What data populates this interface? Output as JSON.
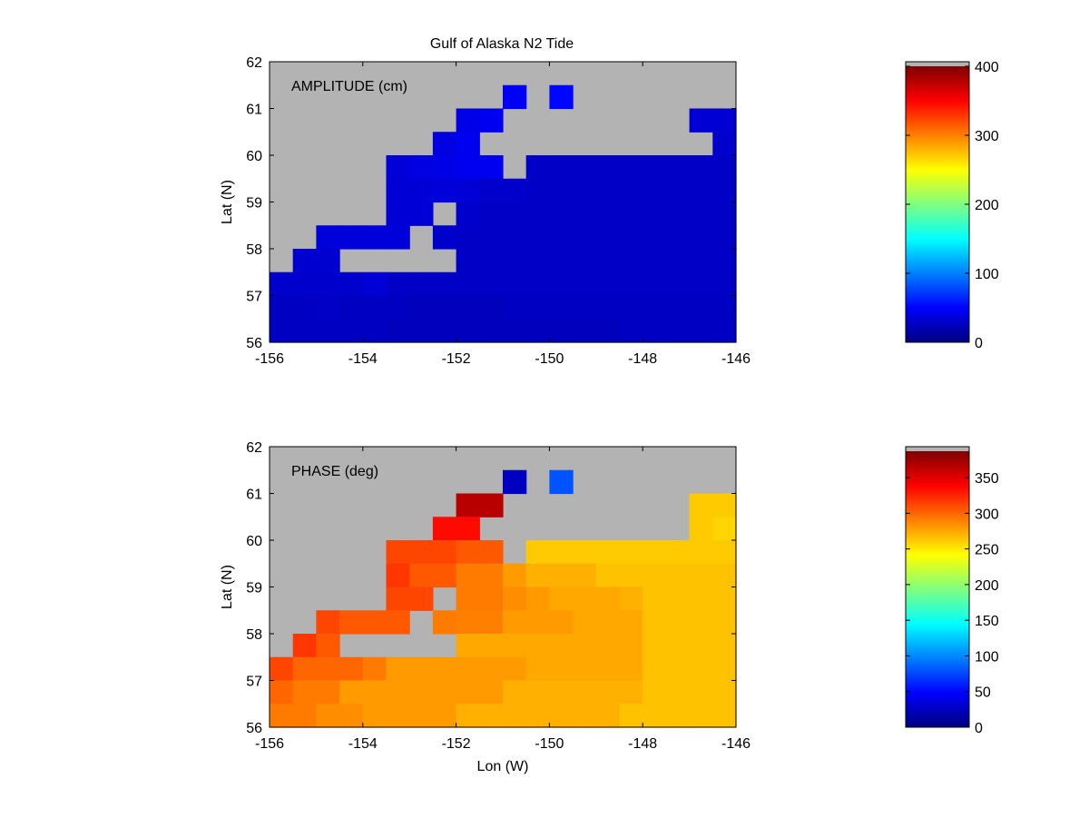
{
  "figure": {
    "title": "Gulf of Alaska N2 Tide",
    "land_color": "#b3b3b3"
  },
  "chart_data": [
    {
      "type": "heatmap",
      "panel_label": "AMPLITUDE (cm)",
      "xlabel": "",
      "ylabel": "Lat (N)",
      "xlim": [
        -156,
        -146
      ],
      "ylim": [
        56,
        62
      ],
      "xticks": [
        -156,
        -154,
        -152,
        -150,
        -148,
        -146
      ],
      "yticks": [
        56,
        57,
        58,
        59,
        60,
        61,
        62
      ],
      "x_centers": [
        -155.75,
        -155.25,
        -154.75,
        -154.25,
        -153.75,
        -153.25,
        -152.75,
        -152.25,
        -151.75,
        -151.25,
        -150.75,
        -150.25,
        -149.75,
        -149.25,
        -148.75,
        -148.25,
        -147.75,
        -147.25,
        -146.75,
        -146.25
      ],
      "y_centers": [
        61.75,
        61.25,
        60.75,
        60.25,
        59.75,
        59.25,
        58.75,
        58.25,
        57.75,
        57.25,
        56.75,
        56.25
      ],
      "values": [
        [
          null,
          null,
          null,
          null,
          null,
          null,
          null,
          null,
          null,
          null,
          null,
          null,
          null,
          null,
          null,
          null,
          null,
          null,
          null,
          null
        ],
        [
          null,
          null,
          null,
          null,
          null,
          null,
          null,
          null,
          null,
          null,
          47,
          null,
          52,
          null,
          null,
          null,
          null,
          null,
          null,
          null
        ],
        [
          null,
          null,
          null,
          null,
          null,
          null,
          null,
          null,
          40,
          44,
          null,
          null,
          null,
          null,
          null,
          null,
          null,
          null,
          33,
          33
        ],
        [
          null,
          null,
          null,
          null,
          null,
          null,
          null,
          38,
          44,
          null,
          null,
          null,
          null,
          null,
          null,
          null,
          null,
          null,
          null,
          30
        ],
        [
          null,
          null,
          null,
          null,
          null,
          35,
          38,
          40,
          44,
          44,
          null,
          28,
          28,
          28,
          28,
          28,
          28,
          28,
          28,
          28
        ],
        [
          null,
          null,
          null,
          null,
          null,
          34,
          34,
          36,
          34,
          30,
          30,
          28,
          28,
          28,
          28,
          28,
          28,
          28,
          28,
          28
        ],
        [
          null,
          null,
          null,
          null,
          null,
          34,
          34,
          null,
          30,
          28,
          28,
          28,
          28,
          28,
          28,
          28,
          28,
          28,
          28,
          28
        ],
        [
          null,
          null,
          36,
          36,
          36,
          36,
          null,
          30,
          28,
          28,
          28,
          28,
          28,
          28,
          28,
          28,
          28,
          28,
          28,
          28
        ],
        [
          null,
          32,
          32,
          null,
          null,
          null,
          null,
          null,
          28,
          28,
          28,
          28,
          28,
          28,
          28,
          28,
          28,
          28,
          28,
          28
        ],
        [
          30,
          30,
          30,
          30,
          34,
          28,
          28,
          28,
          28,
          28,
          28,
          28,
          28,
          28,
          28,
          28,
          28,
          28,
          28,
          28
        ],
        [
          26,
          26,
          28,
          26,
          26,
          26,
          24,
          24,
          24,
          24,
          26,
          26,
          26,
          26,
          26,
          26,
          26,
          26,
          26,
          26
        ],
        [
          26,
          26,
          26,
          26,
          26,
          24,
          24,
          24,
          24,
          24,
          24,
          24,
          24,
          24,
          24,
          26,
          26,
          26,
          26,
          26
        ]
      ],
      "colorbar": {
        "cmin": 0,
        "cmax": 400,
        "ticks": [
          0,
          100,
          200,
          300,
          400
        ]
      }
    },
    {
      "type": "heatmap",
      "panel_label": "PHASE (deg)",
      "xlabel": "Lon (W)",
      "ylabel": "Lat (N)",
      "xlim": [
        -156,
        -146
      ],
      "ylim": [
        56,
        62
      ],
      "xticks": [
        -156,
        -154,
        -152,
        -150,
        -148,
        -146
      ],
      "yticks": [
        56,
        57,
        58,
        59,
        60,
        61,
        62
      ],
      "x_centers": [
        -155.75,
        -155.25,
        -154.75,
        -154.25,
        -153.75,
        -153.25,
        -152.75,
        -152.25,
        -151.75,
        -151.25,
        -150.75,
        -150.25,
        -149.75,
        -149.25,
        -148.75,
        -148.25,
        -147.75,
        -147.25,
        -146.75,
        -146.25
      ],
      "y_centers": [
        61.75,
        61.25,
        60.75,
        60.25,
        59.75,
        59.25,
        58.75,
        58.25,
        57.75,
        57.25,
        56.75,
        56.25
      ],
      "values": [
        [
          null,
          null,
          null,
          null,
          null,
          null,
          null,
          null,
          null,
          null,
          null,
          null,
          null,
          null,
          null,
          null,
          null,
          null,
          null,
          null
        ],
        [
          null,
          null,
          null,
          null,
          null,
          null,
          null,
          null,
          null,
          null,
          25,
          null,
          80,
          null,
          null,
          null,
          null,
          null,
          null,
          null
        ],
        [
          null,
          null,
          null,
          null,
          null,
          null,
          null,
          null,
          365,
          365,
          null,
          null,
          null,
          null,
          null,
          null,
          null,
          null,
          262,
          262
        ],
        [
          null,
          null,
          null,
          null,
          null,
          null,
          null,
          335,
          335,
          null,
          null,
          null,
          null,
          null,
          null,
          null,
          null,
          null,
          262,
          258
        ],
        [
          null,
          null,
          null,
          null,
          null,
          312,
          312,
          312,
          305,
          305,
          null,
          262,
          262,
          262,
          262,
          262,
          262,
          262,
          262,
          262
        ],
        [
          null,
          null,
          null,
          null,
          null,
          318,
          305,
          305,
          292,
          292,
          280,
          272,
          272,
          272,
          265,
          265,
          265,
          265,
          265,
          265
        ],
        [
          null,
          null,
          null,
          null,
          null,
          312,
          312,
          null,
          292,
          292,
          285,
          280,
          275,
          275,
          275,
          272,
          265,
          265,
          265,
          265
        ],
        [
          null,
          null,
          312,
          305,
          305,
          305,
          null,
          292,
          290,
          290,
          280,
          280,
          280,
          275,
          275,
          275,
          265,
          265,
          265,
          265
        ],
        [
          null,
          318,
          305,
          null,
          null,
          null,
          null,
          null,
          275,
          275,
          275,
          275,
          275,
          275,
          275,
          275,
          265,
          265,
          265,
          265
        ],
        [
          312,
          300,
          300,
          300,
          292,
          280,
          280,
          280,
          280,
          280,
          280,
          275,
          275,
          275,
          275,
          275,
          265,
          265,
          265,
          265
        ],
        [
          300,
          292,
          292,
          280,
          280,
          280,
          280,
          280,
          280,
          280,
          272,
          272,
          272,
          272,
          272,
          272,
          265,
          265,
          265,
          265
        ],
        [
          292,
          292,
          285,
          285,
          280,
          280,
          280,
          280,
          272,
          272,
          272,
          272,
          272,
          272,
          272,
          265,
          265,
          265,
          265,
          265
        ]
      ],
      "colorbar": {
        "cmin": 0,
        "cmax": 387,
        "ticks": [
          0,
          50,
          100,
          150,
          200,
          250,
          300,
          350
        ]
      }
    }
  ]
}
